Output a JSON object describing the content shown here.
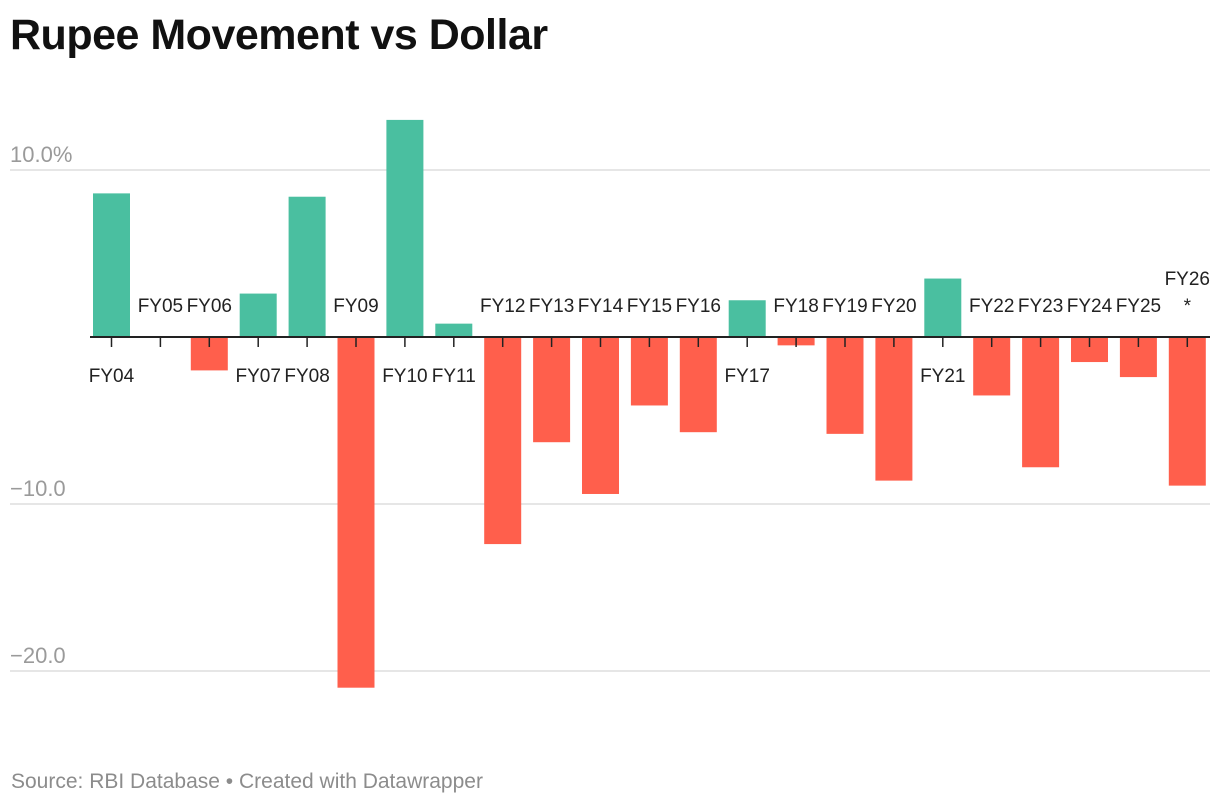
{
  "title": "Rupee Movement vs Dollar",
  "footer": {
    "source": "Source: RBI Database",
    "separator": " • ",
    "credit": "Created with Datawrapper"
  },
  "colors": {
    "positive": "#4abfa0",
    "negative": "#ff5f4c",
    "grid": "#dddddd",
    "axis": "#222222"
  },
  "chart_data": {
    "type": "bar",
    "title": "Rupee Movement vs Dollar",
    "xlabel": "",
    "ylabel": "",
    "unit": "%",
    "ylim": [
      -24,
      15
    ],
    "yticks": [
      {
        "value": 10,
        "label": "10.0%"
      },
      {
        "value": -10,
        "label": "−10.0"
      },
      {
        "value": -20,
        "label": "−20.0"
      }
    ],
    "grid": true,
    "categories": [
      "FY04",
      "FY05",
      "FY06",
      "FY07",
      "FY08",
      "FY09",
      "FY10",
      "FY11",
      "FY12",
      "FY13",
      "FY14",
      "FY15",
      "FY16",
      "FY17",
      "FY18",
      "FY19",
      "FY20",
      "FY21",
      "FY22",
      "FY23",
      "FY24",
      "FY25",
      "FY26"
    ],
    "label_suffix": [
      "",
      "",
      "",
      "",
      "",
      "",
      "",
      "",
      "",
      "",
      "",
      "",
      "",
      "",
      "",
      "",
      "",
      "",
      "",
      "",
      "",
      "",
      "*"
    ],
    "values": [
      8.6,
      0.0,
      -2.0,
      2.6,
      8.4,
      -21.0,
      13.0,
      0.8,
      -12.4,
      -6.3,
      -9.4,
      -4.1,
      -5.7,
      2.2,
      -0.5,
      -5.8,
      -8.6,
      3.5,
      -3.5,
      -7.8,
      -1.5,
      -2.4,
      -8.9
    ]
  }
}
